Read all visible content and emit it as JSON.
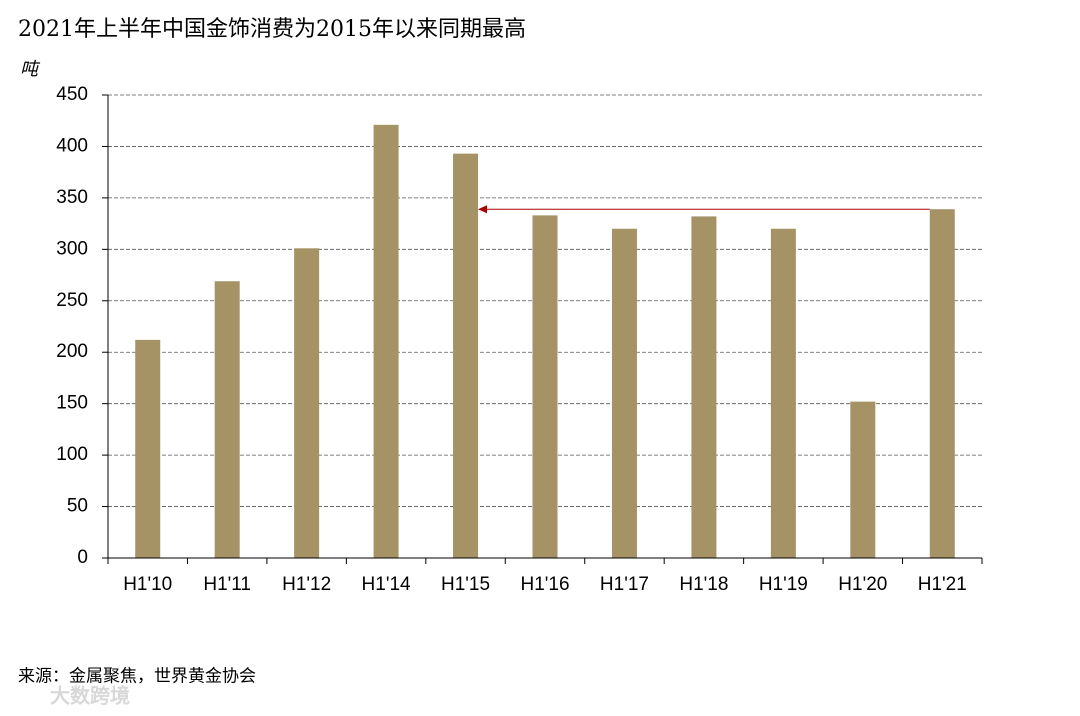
{
  "chart_data": {
    "type": "bar",
    "title": "2021年上半年中国金饰消费为2015年以来同期最高",
    "y_label": "吨",
    "source": "来源：金属聚焦，世界黄金协会",
    "watermark": "大数跨境",
    "categories": [
      "H1'10",
      "H1'11",
      "H1'12",
      "H1'14",
      "H1'15",
      "H1'16",
      "H1'17",
      "H1'18",
      "H1'19",
      "H1'20",
      "H1'21"
    ],
    "values": [
      212,
      269,
      301,
      421,
      393,
      333,
      320,
      332,
      320,
      152,
      339
    ],
    "color": "#a59265",
    "ylim": [
      0,
      450
    ],
    "yticks": [
      0,
      50,
      100,
      150,
      200,
      250,
      300,
      350,
      400,
      450
    ],
    "grid": true
  }
}
